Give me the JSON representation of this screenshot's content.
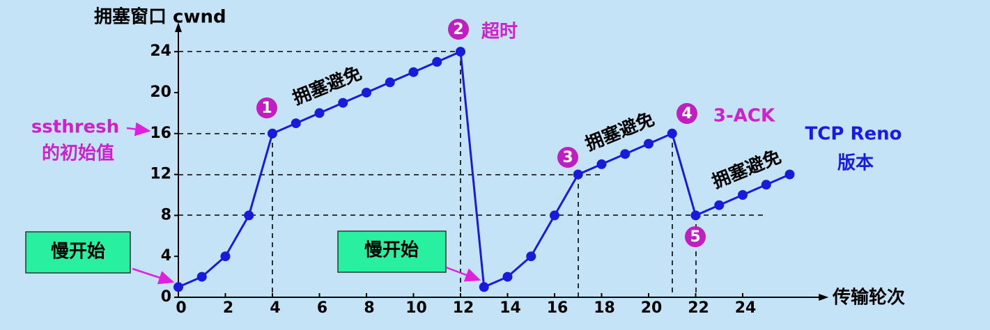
{
  "chart_data": {
    "type": "line",
    "y_axis_label": "拥塞窗口  cwnd",
    "x_axis_label": "传输轮次",
    "x": [
      0,
      1,
      2,
      3,
      4,
      5,
      6,
      7,
      8,
      9,
      10,
      11,
      12,
      13,
      14,
      15,
      16,
      17,
      18,
      19,
      20,
      21,
      22,
      23,
      24,
      25,
      26
    ],
    "series": [
      {
        "color": "#1a1adc",
        "values": [
          1,
          2,
          4,
          8,
          16,
          17,
          18,
          19,
          20,
          21,
          22,
          23,
          24,
          1,
          2,
          4,
          8,
          12,
          13,
          14,
          15,
          16,
          8,
          9,
          10,
          11,
          12
        ]
      }
    ],
    "xlim": [
      0,
      27
    ],
    "ylim": [
      0,
      25.5
    ],
    "xticks": [
      0,
      2,
      4,
      6,
      8,
      10,
      12,
      14,
      16,
      18,
      20,
      22,
      24
    ],
    "yticks": [
      0,
      4,
      8,
      12,
      16,
      20,
      24
    ],
    "annotations": [
      "1",
      "2",
      "超时",
      "3",
      "拥塞避免",
      "4",
      "3-ACK",
      "5",
      "拥塞避免",
      "拥塞避免",
      "TCP Reno",
      "版本",
      "ssthresh",
      "的初始值",
      "慢开始",
      "慢开始"
    ]
  }
}
